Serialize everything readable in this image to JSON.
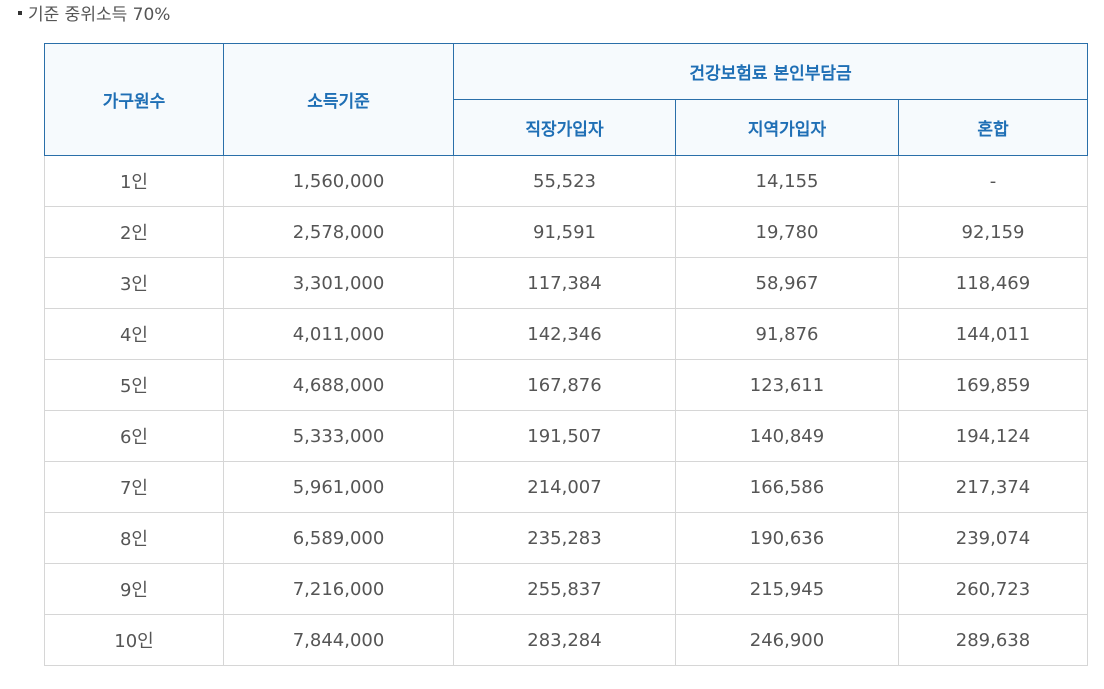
{
  "caption": "기준 중위소득 70%",
  "table": {
    "headers": {
      "household": "가구원수",
      "income": "소득기준",
      "premium_group": "건강보험료 본인부담금",
      "employee": "직장가입자",
      "regional": "지역가입자",
      "mixed": "혼합"
    },
    "rows": [
      {
        "household": "1인",
        "income": "1,560,000",
        "employee": "55,523",
        "regional": "14,155",
        "mixed": "-"
      },
      {
        "household": "2인",
        "income": "2,578,000",
        "employee": "91,591",
        "regional": "19,780",
        "mixed": "92,159"
      },
      {
        "household": "3인",
        "income": "3,301,000",
        "employee": "117,384",
        "regional": "58,967",
        "mixed": "118,469"
      },
      {
        "household": "4인",
        "income": "4,011,000",
        "employee": "142,346",
        "regional": "91,876",
        "mixed": "144,011"
      },
      {
        "household": "5인",
        "income": "4,688,000",
        "employee": "167,876",
        "regional": "123,611",
        "mixed": "169,859"
      },
      {
        "household": "6인",
        "income": "5,333,000",
        "employee": "191,507",
        "regional": "140,849",
        "mixed": "194,124"
      },
      {
        "household": "7인",
        "income": "5,961,000",
        "employee": "214,007",
        "regional": "166,586",
        "mixed": "217,374"
      },
      {
        "household": "8인",
        "income": "6,589,000",
        "employee": "235,283",
        "regional": "190,636",
        "mixed": "239,074"
      },
      {
        "household": "9인",
        "income": "7,216,000",
        "employee": "255,837",
        "regional": "215,945",
        "mixed": "260,723"
      },
      {
        "household": "10인",
        "income": "7,844,000",
        "employee": "283,284",
        "regional": "246,900",
        "mixed": "289,638"
      }
    ]
  }
}
